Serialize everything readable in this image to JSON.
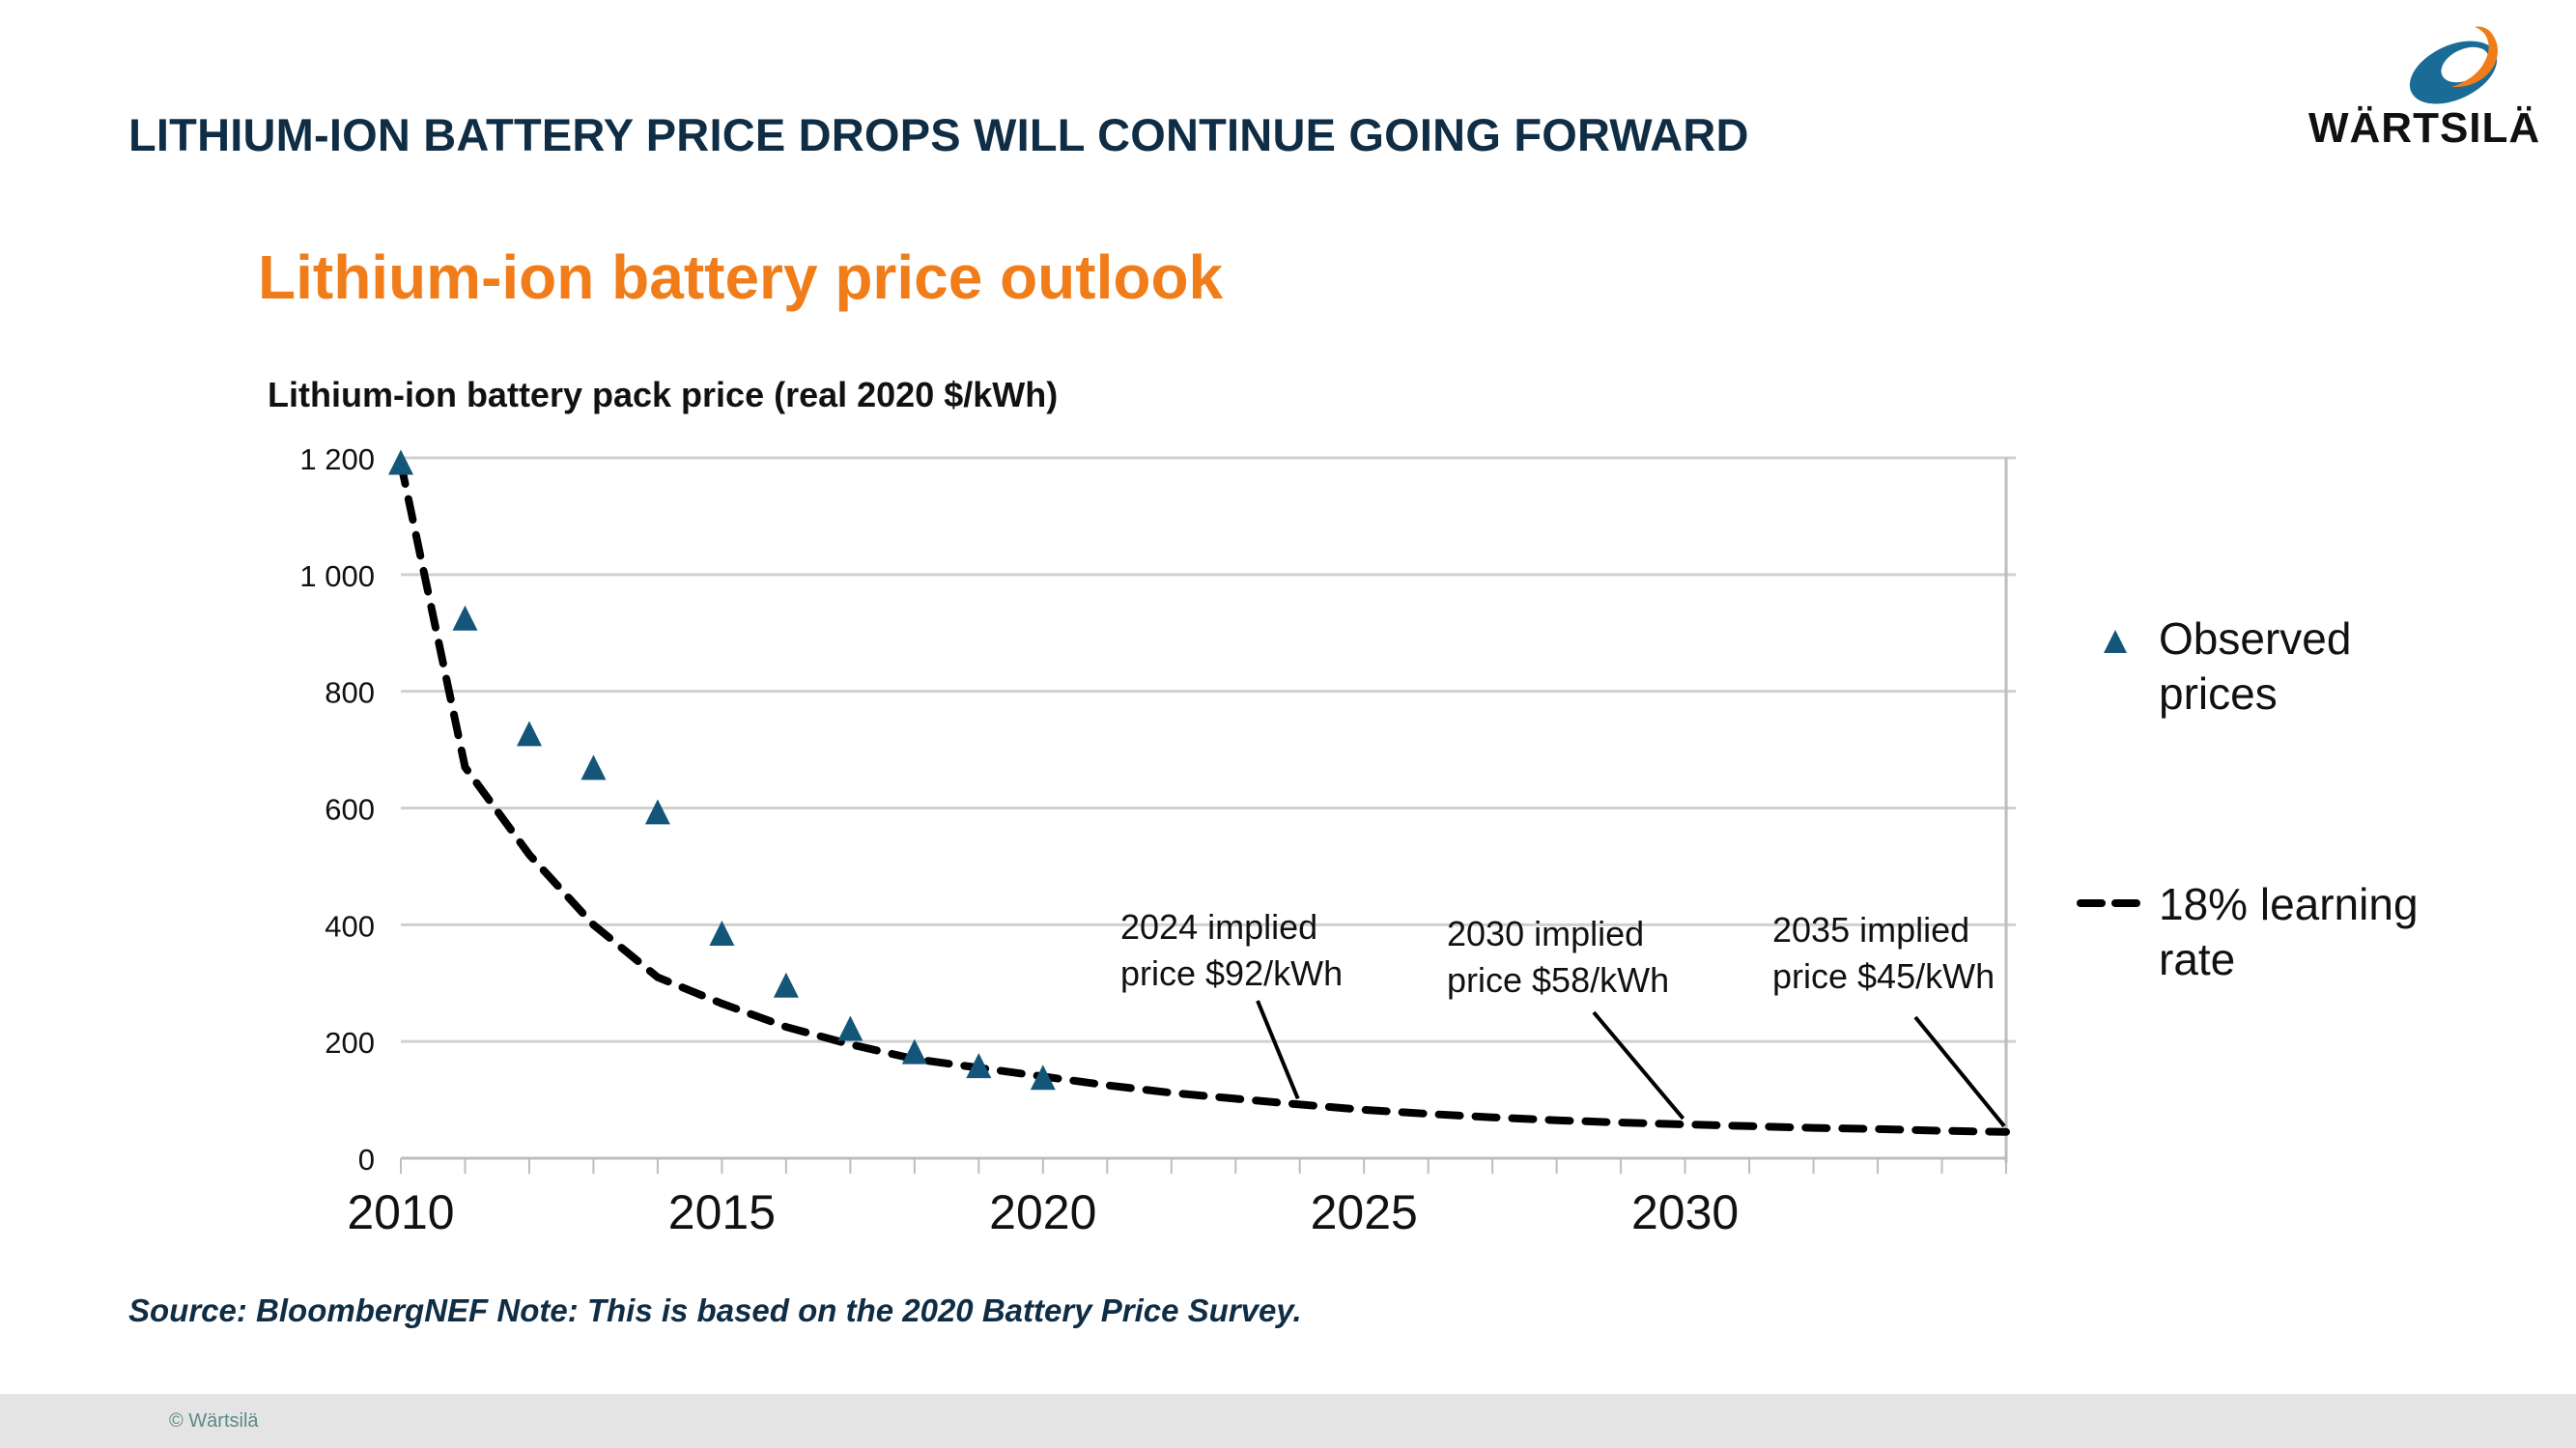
{
  "slide": {
    "title": "LITHIUM-ION BATTERY PRICE DROPS WILL CONTINUE GOING FORWARD",
    "logo_text": "WÄRTSILÄ",
    "source_note": "Source: BloombergNEF Note: This is based on the 2020 Battery Price Survey.",
    "copyright": "© Wärtsilä",
    "colors": {
      "title": "#0f2d45",
      "accent_orange": "#f07d1a",
      "marker_blue": "#14567a",
      "logo_blue": "#1b6b97",
      "footer_bg": "#e4e4e4"
    }
  },
  "chart_data": {
    "type": "scatter",
    "title": "Lithium-ion battery price outlook",
    "ylabel": "Lithium-ion battery pack price (real 2020 $/kWh)",
    "xlabel": "",
    "xlim": [
      2010,
      2035
    ],
    "ylim": [
      0,
      1200
    ],
    "x_ticks": [
      2010,
      2015,
      2020,
      2025,
      2030
    ],
    "y_ticks": [
      0,
      200,
      400,
      600,
      800,
      1000,
      1200
    ],
    "y_tick_labels": [
      "0",
      "200",
      "400",
      "600",
      "800",
      "1 000",
      "1 200"
    ],
    "grid": true,
    "legend_position": "right",
    "series": [
      {
        "name": "Observed prices",
        "kind": "scatter-triangle",
        "x": [
          2010,
          2011,
          2012,
          2013,
          2014,
          2015,
          2016,
          2017,
          2018,
          2019,
          2020
        ],
        "values": [
          1191,
          924,
          726,
          668,
          592,
          384,
          295,
          221,
          181,
          157,
          137
        ]
      },
      {
        "name": "18% learning rate",
        "kind": "dashed-line",
        "x": [
          2010,
          2011,
          2012,
          2013,
          2014,
          2015,
          2016,
          2017,
          2018,
          2019,
          2020,
          2021,
          2022,
          2023,
          2024,
          2025,
          2026,
          2027,
          2028,
          2029,
          2030,
          2031,
          2032,
          2033,
          2034,
          2035
        ],
        "values": [
          1191,
          670,
          520,
          400,
          310,
          265,
          225,
          195,
          170,
          155,
          140,
          125,
          112,
          102,
          92,
          83,
          76,
          70,
          65,
          61,
          58,
          55,
          52,
          50,
          47,
          45
        ]
      }
    ],
    "legend": [
      {
        "label": "Observed prices",
        "line1": "Observed",
        "line2": "prices"
      },
      {
        "label": "18% learning rate",
        "line1": "18% learning",
        "line2": "rate"
      }
    ],
    "annotations": [
      {
        "x": 2024,
        "y": 92,
        "line1": "2024 implied",
        "line2": "price $92/kWh"
      },
      {
        "x": 2030,
        "y": 58,
        "line1": "2030 implied",
        "line2": "price $58/kWh"
      },
      {
        "x": 2035,
        "y": 45,
        "line1": "2035 implied",
        "line2": "price $45/kWh"
      }
    ]
  }
}
